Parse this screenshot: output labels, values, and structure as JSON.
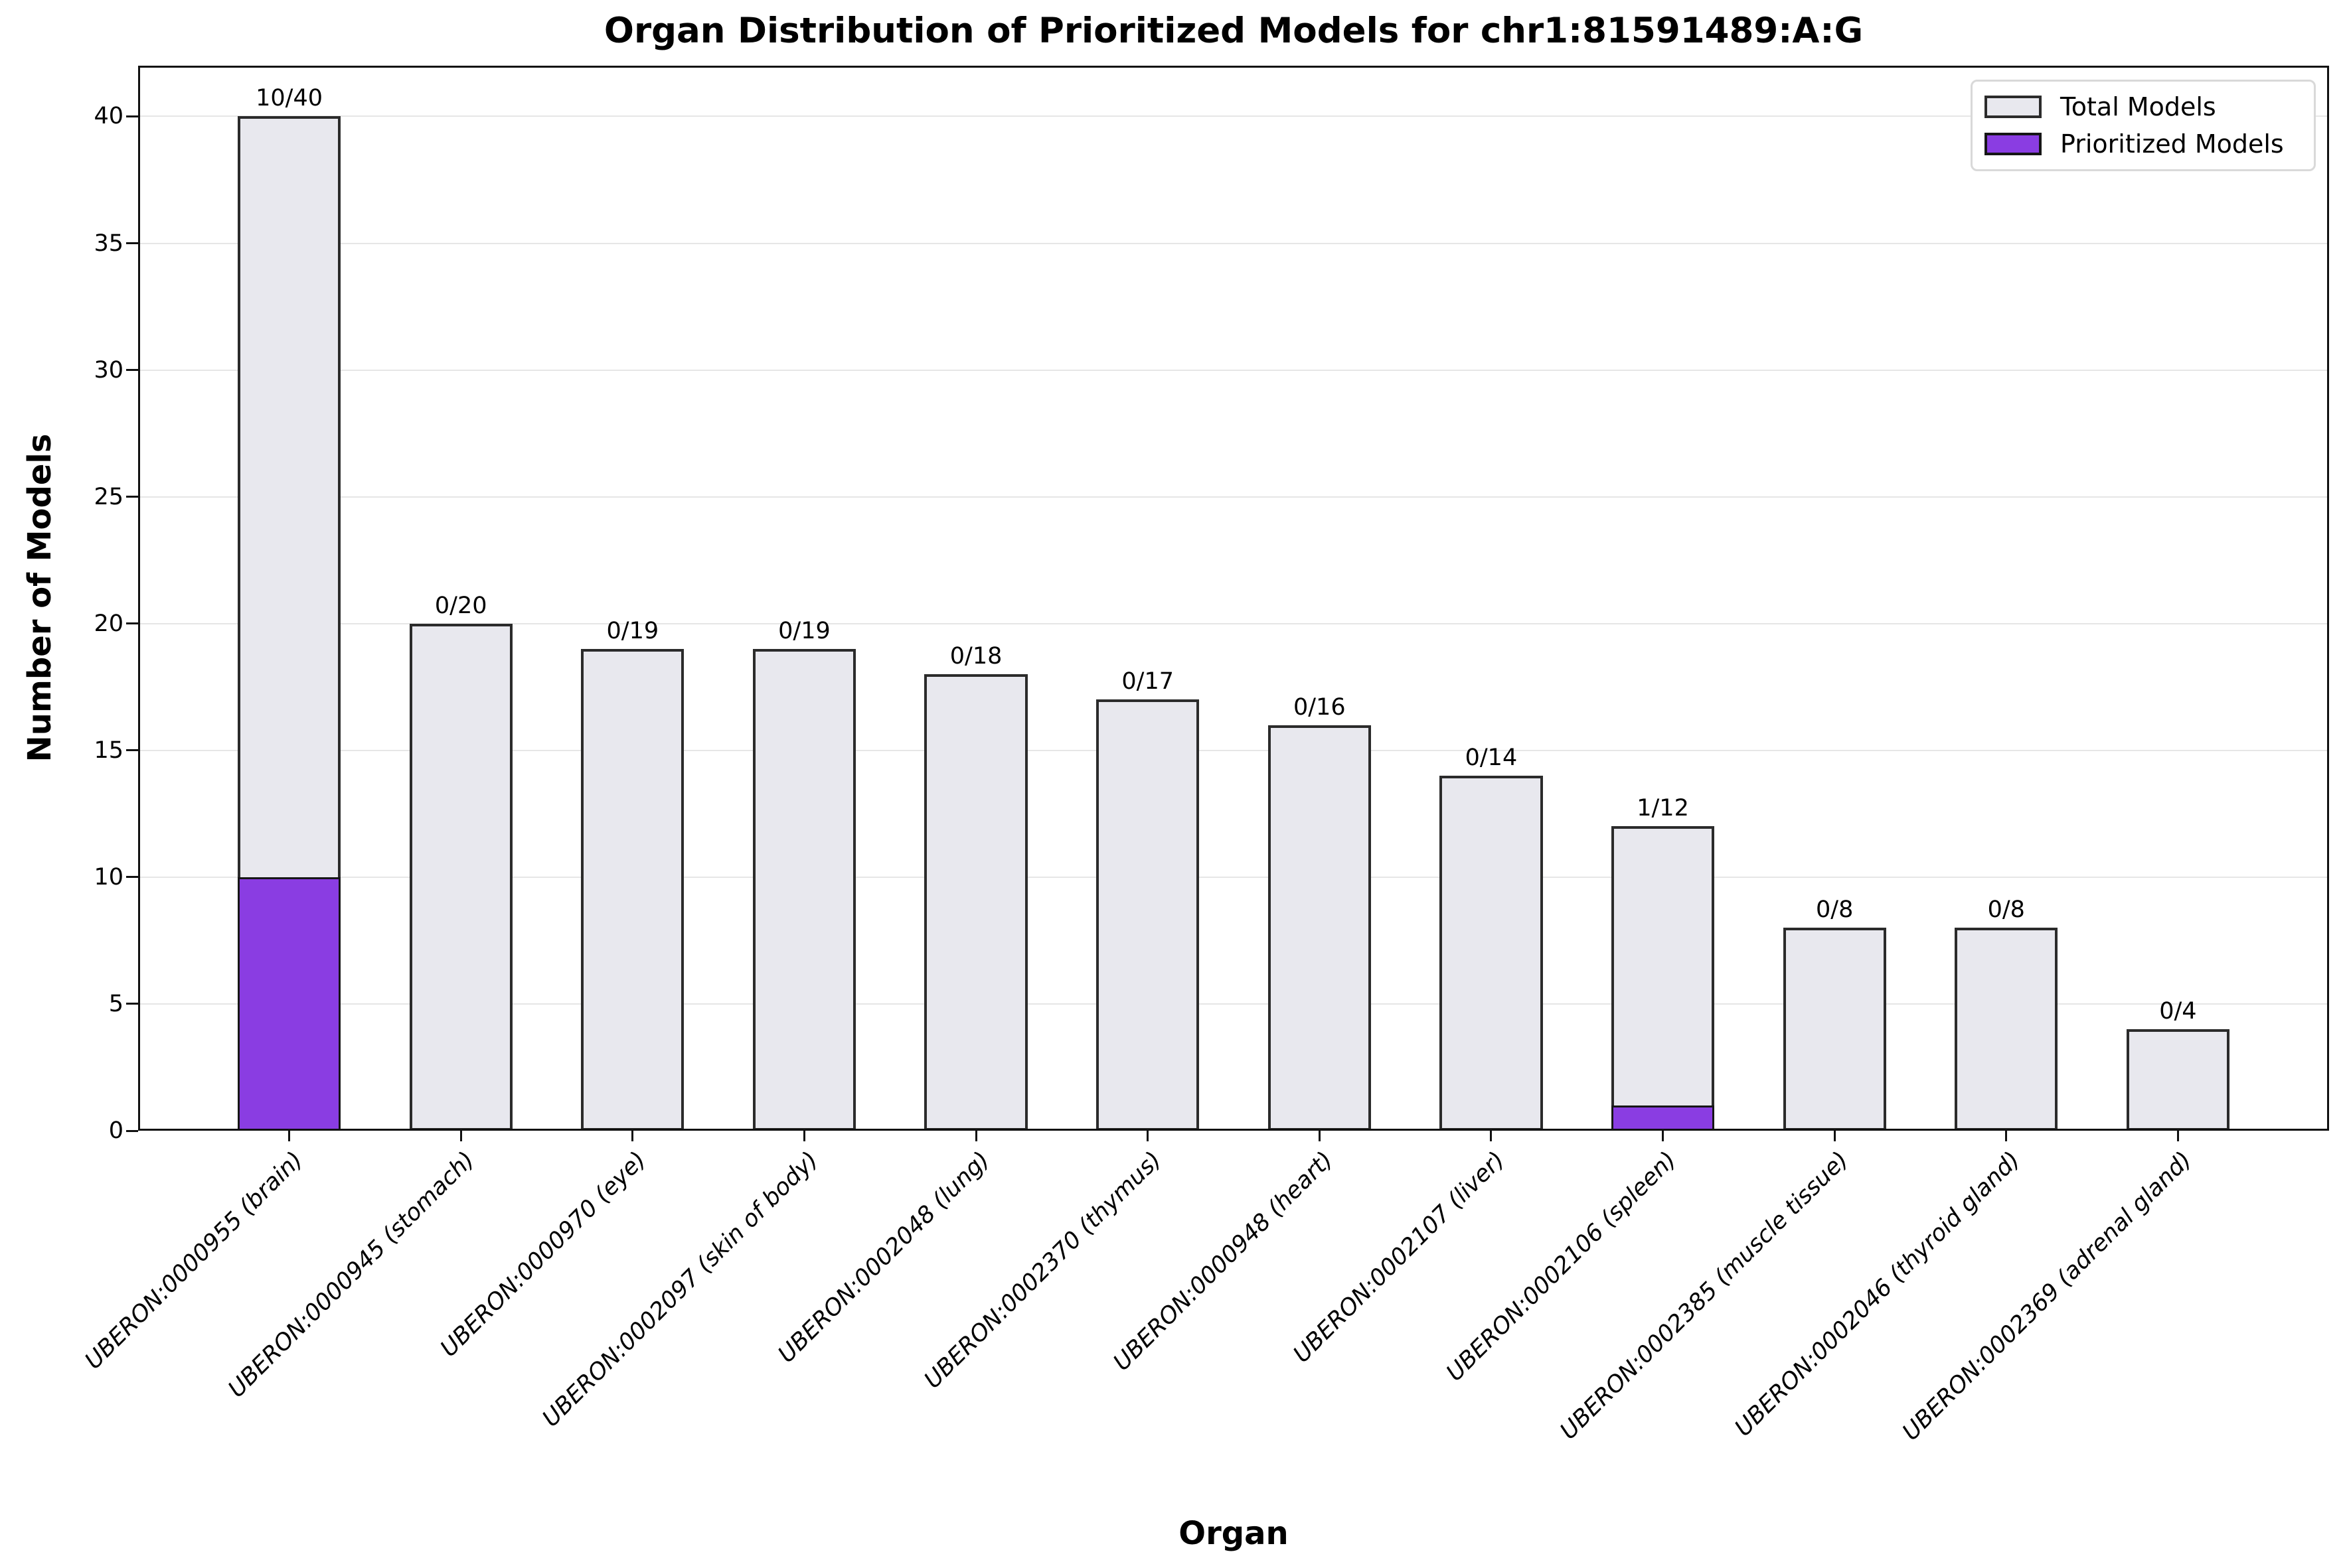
{
  "title": "Organ Distribution of Prioritized Models for chr1:81591489:A:G",
  "colors": {
    "total_fill": "#E8E8EE",
    "prioritized_fill": "#8A3DE2",
    "bar_edge": "#2B2B2B",
    "grid": "#E6E6E6",
    "spine": "#111111",
    "background": "#FFFFFF",
    "text": "#000000"
  },
  "legend": {
    "position": "upper right",
    "items": [
      {
        "label": "Total Models",
        "color": "#E8E8EE"
      },
      {
        "label": "Prioritized Models",
        "color": "#8A3DE2"
      }
    ]
  },
  "chart_data": {
    "type": "bar",
    "title": "Organ Distribution of Prioritized Models for chr1:81591489:A:G",
    "xlabel": "Organ",
    "ylabel": "Number of Models",
    "ylim": [
      0,
      42
    ],
    "yticks": [
      0,
      5,
      10,
      15,
      20,
      25,
      30,
      35,
      40
    ],
    "grid": "horizontal",
    "legend_position": "upper right",
    "x_tick_style": "italic, rotated 45deg, right-anchored",
    "categories": [
      "UBERON:0000955 (brain)",
      "UBERON:0000945 (stomach)",
      "UBERON:0000970 (eye)",
      "UBERON:0002097 (skin of body)",
      "UBERON:0002048 (lung)",
      "UBERON:0002370 (thymus)",
      "UBERON:0000948 (heart)",
      "UBERON:0002107 (liver)",
      "UBERON:0002106 (spleen)",
      "UBERON:0002385 (muscle tissue)",
      "UBERON:0002046 (thyroid gland)",
      "UBERON:0002369 (adrenal gland)"
    ],
    "series": [
      {
        "name": "Total Models",
        "color": "#E8E8EE",
        "values": [
          40,
          20,
          19,
          19,
          18,
          17,
          16,
          14,
          12,
          8,
          8,
          4
        ]
      },
      {
        "name": "Prioritized Models",
        "color": "#8A3DE2",
        "values": [
          10,
          0,
          0,
          0,
          0,
          0,
          0,
          0,
          1,
          0,
          0,
          0
        ]
      }
    ],
    "bar_labels": [
      "10/40",
      "0/20",
      "0/19",
      "0/19",
      "0/18",
      "0/17",
      "0/16",
      "0/14",
      "1/12",
      "0/8",
      "0/8",
      "0/4"
    ],
    "bar_label_format": "prioritized/total"
  }
}
